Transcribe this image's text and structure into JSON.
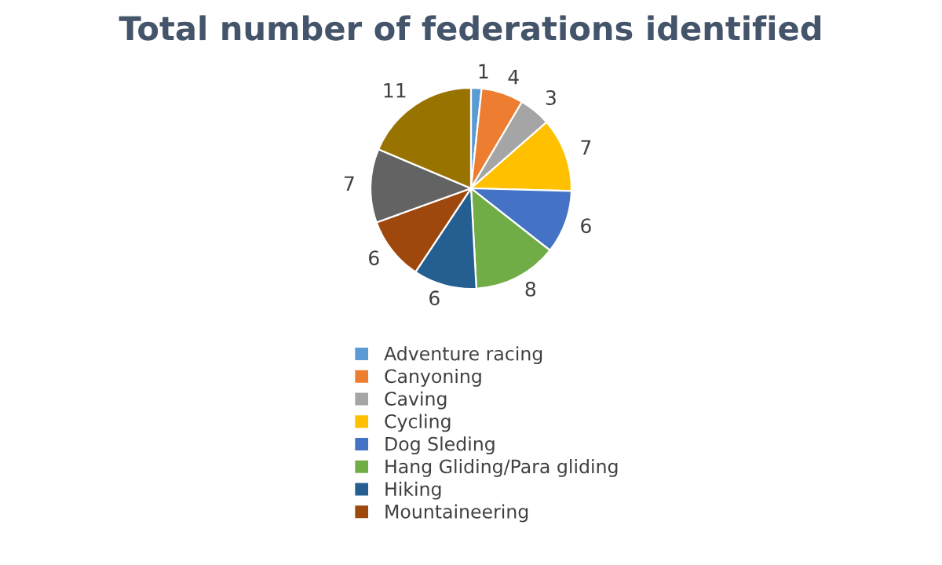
{
  "chart_data": {
    "type": "pie",
    "title": "Total number of federations identified",
    "categories": [
      "Adventure racing",
      "Canyoning",
      "Caving",
      "Cycling",
      "Dog Sleding",
      "Hang Gliding/Para gliding",
      "Hiking",
      "Mountaineering",
      null,
      null
    ],
    "values": [
      1,
      4,
      3,
      7,
      6,
      8,
      6,
      6,
      7,
      11
    ],
    "colors": [
      "#5b9bd5",
      "#ed7d31",
      "#a5a5a5",
      "#ffc000",
      "#4472c4",
      "#70ad47",
      "#255e91",
      "#9e480e",
      "#636363",
      "#997300"
    ],
    "data_labels": true,
    "legend": "bottom"
  }
}
